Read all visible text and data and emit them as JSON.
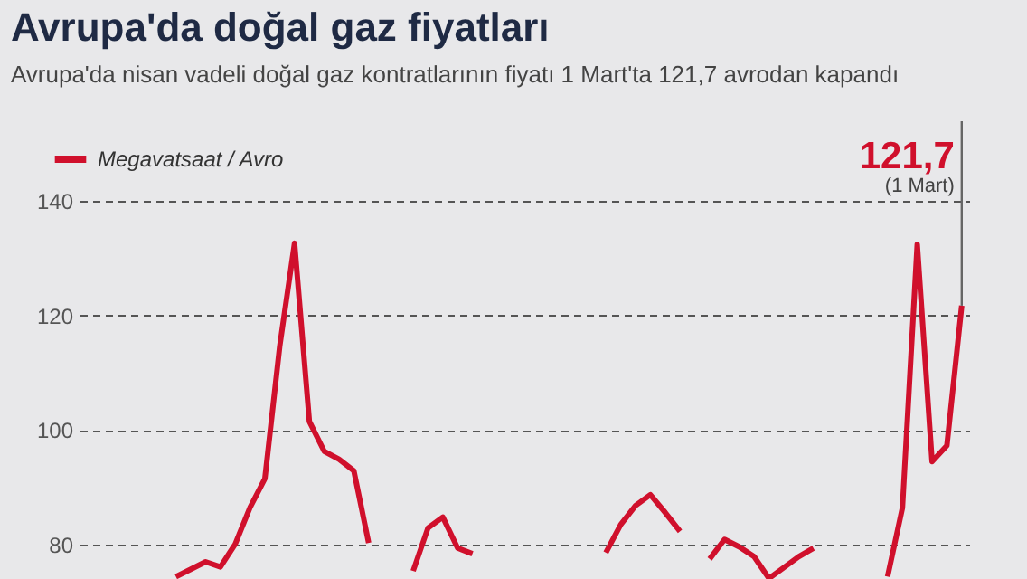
{
  "chart_data": {
    "type": "line",
    "title": "Avrupa'da doğal gaz fiyatları",
    "subtitle": "Avrupa'da nisan vadeli doğal gaz kontratlarının fiyatı 1 Mart'ta 121,7 avrodan kapandı",
    "categories": [
      null,
      null,
      null,
      null,
      null,
      null,
      null,
      null,
      null,
      null,
      null,
      null,
      null,
      null,
      null,
      null,
      null,
      null,
      null,
      null,
      null,
      null,
      null,
      null,
      null,
      null,
      null,
      null,
      null,
      null,
      null,
      null,
      null,
      null,
      null,
      null,
      null,
      null,
      null,
      null,
      null,
      null,
      null,
      null,
      null,
      null,
      null,
      null,
      null,
      null,
      null,
      null,
      null,
      null,
      null,
      null,
      null,
      null,
      null,
      null
    ],
    "series": [
      {
        "name": "Megavatsaat / Avro",
        "color": "#d0102c",
        "values": [
          null,
          null,
          null,
          null,
          null,
          null,
          74.4,
          75.7,
          77.0,
          76.1,
          80.1,
          86.5,
          91.5,
          114.6,
          132.6,
          101.5,
          96.3,
          94.9,
          92.9,
          80.3,
          null,
          null,
          75.4,
          82.9,
          84.8,
          79.4,
          78.4,
          null,
          null,
          null,
          null,
          null,
          null,
          null,
          null,
          78.6,
          83.5,
          86.8,
          88.7,
          85.6,
          82.3,
          null,
          77.5,
          80.9,
          79.6,
          77.9,
          74.1,
          76.0,
          77.9,
          79.4,
          null,
          null,
          null,
          null,
          74.4,
          86.4,
          132.4,
          94.5,
          97.3,
          121.7
        ],
        "value_labels": [
          null,
          null,
          null,
          null,
          null,
          null,
          null,
          null,
          null,
          null,
          null,
          null,
          null,
          null,
          null,
          null,
          null,
          null,
          null,
          null,
          null,
          null,
          null,
          null,
          null,
          null,
          null,
          null,
          null,
          null,
          null,
          null,
          null,
          null,
          null,
          null,
          null,
          null,
          null,
          null,
          null,
          null,
          null,
          null,
          null,
          null,
          null,
          null,
          null,
          null,
          null,
          null,
          null,
          null,
          null,
          null,
          null,
          null,
          null,
          "121,7"
        ]
      }
    ],
    "annotations": [
      "(1 Mart)"
    ],
    "ylim": [
      74,
      140
    ],
    "yticks": [
      80,
      100,
      120,
      140
    ],
    "grid": "y",
    "legend": "top left",
    "tick_labels": "y"
  }
}
